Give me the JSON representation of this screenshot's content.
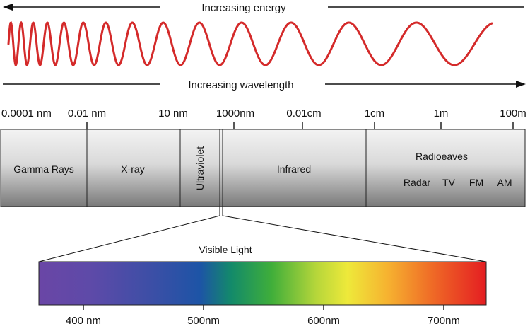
{
  "header": {
    "energy_label": "Increasing energy",
    "wavelength_label": "Increasing wavelength"
  },
  "scale_ticks": [
    "0.0001 nm",
    "0.01 nm",
    "10 nm",
    "1000nm",
    "0.01cm",
    "1cm",
    "1m",
    "100m"
  ],
  "bands": {
    "gamma": "Gamma Rays",
    "xray": "X-ray",
    "uv": "Ultraviolet",
    "ir": "Infrared",
    "radio": "Radioeaves",
    "radio_sub": [
      "Radar",
      "TV",
      "FM",
      "AM"
    ]
  },
  "visible": {
    "title": "Visible Light",
    "ticks": [
      "400 nm",
      "500nm",
      "600nm",
      "700nm"
    ]
  },
  "colors": {
    "wave": "#d42a2a",
    "arrow": "#111111",
    "band_light": "#f2f2f2",
    "band_dark": "#7e7e7e",
    "divider": "#222222"
  }
}
